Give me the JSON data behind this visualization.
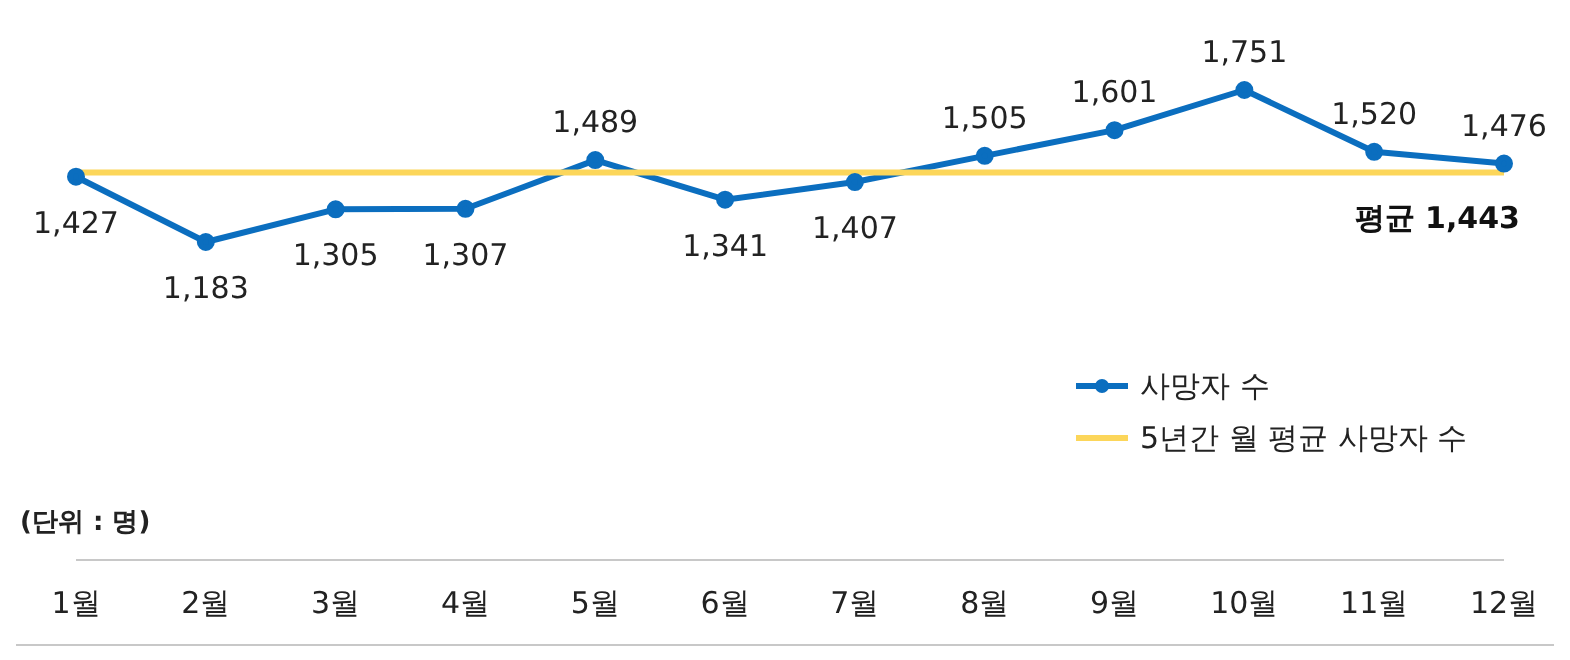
{
  "chart_data": {
    "type": "line",
    "categories": [
      "1월",
      "2월",
      "3월",
      "4월",
      "5월",
      "6월",
      "7월",
      "8월",
      "9월",
      "10월",
      "11월",
      "12월"
    ],
    "series": [
      {
        "name": "사망자 수",
        "color": "#0b6ebf",
        "marker": "circle",
        "values": [
          1427,
          1183,
          1305,
          1307,
          1489,
          1341,
          1407,
          1505,
          1601,
          1751,
          1520,
          1476
        ],
        "value_labels": [
          "1,427",
          "1,183",
          "1,305",
          "1,307",
          "1,489",
          "1,341",
          "1,407",
          "1,505",
          "1,601",
          "1,751",
          "1,520",
          "1,476"
        ]
      },
      {
        "name": "5년간 월 평균 사망자 수",
        "color": "#fcd65a",
        "marker": "none",
        "values": [
          1443,
          1443,
          1443,
          1443,
          1443,
          1443,
          1443,
          1443,
          1443,
          1443,
          1443,
          1443
        ]
      }
    ],
    "annotations": [
      {
        "text": "평균 1,443",
        "x": "12월",
        "y": 1443
      },
      "(단위 : 명)"
    ],
    "legend": "right",
    "tick_labels": "x"
  }
}
